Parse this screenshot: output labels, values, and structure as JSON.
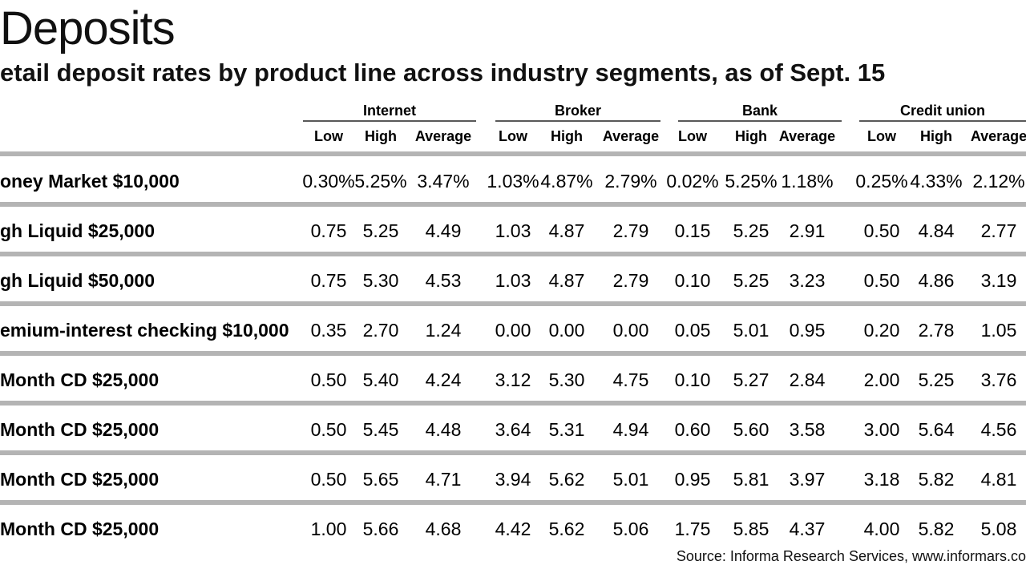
{
  "title": "Deposits",
  "subtitle": "etail deposit rates by product line across industry segments, as of Sept. 15",
  "source": "Source: Informa Research Services, www.informars.co",
  "chart_data": {
    "type": "table",
    "title": "Deposits",
    "subtitle": "etail deposit rates by product line across industry segments, as of Sept. 15",
    "groups": [
      "Internet",
      "Broker",
      "Bank",
      "Credit union"
    ],
    "columns": [
      "Low",
      "High",
      "Average"
    ],
    "rows": [
      {
        "label": "oney Market $10,000",
        "values": [
          "0.30%",
          "5.25%",
          "3.47%",
          "1.03%",
          "4.87%",
          "2.79%",
          "0.02%",
          "5.25%",
          "1.18%",
          "0.25%",
          "4.33%",
          "2.12%"
        ]
      },
      {
        "label": "gh Liquid $25,000",
        "values": [
          "0.75",
          "5.25",
          "4.49",
          "1.03",
          "4.87",
          "2.79",
          "0.15",
          "5.25",
          "2.91",
          "0.50",
          "4.84",
          "2.77"
        ]
      },
      {
        "label": "gh Liquid $50,000",
        "values": [
          "0.75",
          "5.30",
          "4.53",
          "1.03",
          "4.87",
          "2.79",
          "0.10",
          "5.25",
          "3.23",
          "0.50",
          "4.86",
          "3.19"
        ]
      },
      {
        "label": "emium-interest checking $10,000",
        "values": [
          "0.35",
          "2.70",
          "1.24",
          "0.00",
          "0.00",
          "0.00",
          "0.05",
          "5.01",
          "0.95",
          "0.20",
          "2.78",
          "1.05"
        ]
      },
      {
        "label": "Month CD $25,000",
        "values": [
          "0.50",
          "5.40",
          "4.24",
          "3.12",
          "5.30",
          "4.75",
          "0.10",
          "5.27",
          "2.84",
          "2.00",
          "5.25",
          "3.76"
        ]
      },
      {
        "label": "Month CD $25,000",
        "values": [
          "0.50",
          "5.45",
          "4.48",
          "3.64",
          "5.31",
          "4.94",
          "0.60",
          "5.60",
          "3.58",
          "3.00",
          "5.64",
          "4.56"
        ]
      },
      {
        "label": "Month CD $25,000",
        "values": [
          "0.50",
          "5.65",
          "4.71",
          "3.94",
          "5.62",
          "5.01",
          "0.95",
          "5.81",
          "3.97",
          "3.18",
          "5.82",
          "4.81"
        ]
      },
      {
        "label": "Month CD $25,000",
        "values": [
          "1.00",
          "5.66",
          "4.68",
          "4.42",
          "5.62",
          "5.06",
          "1.75",
          "5.85",
          "4.37",
          "4.00",
          "5.82",
          "5.08"
        ]
      }
    ]
  }
}
